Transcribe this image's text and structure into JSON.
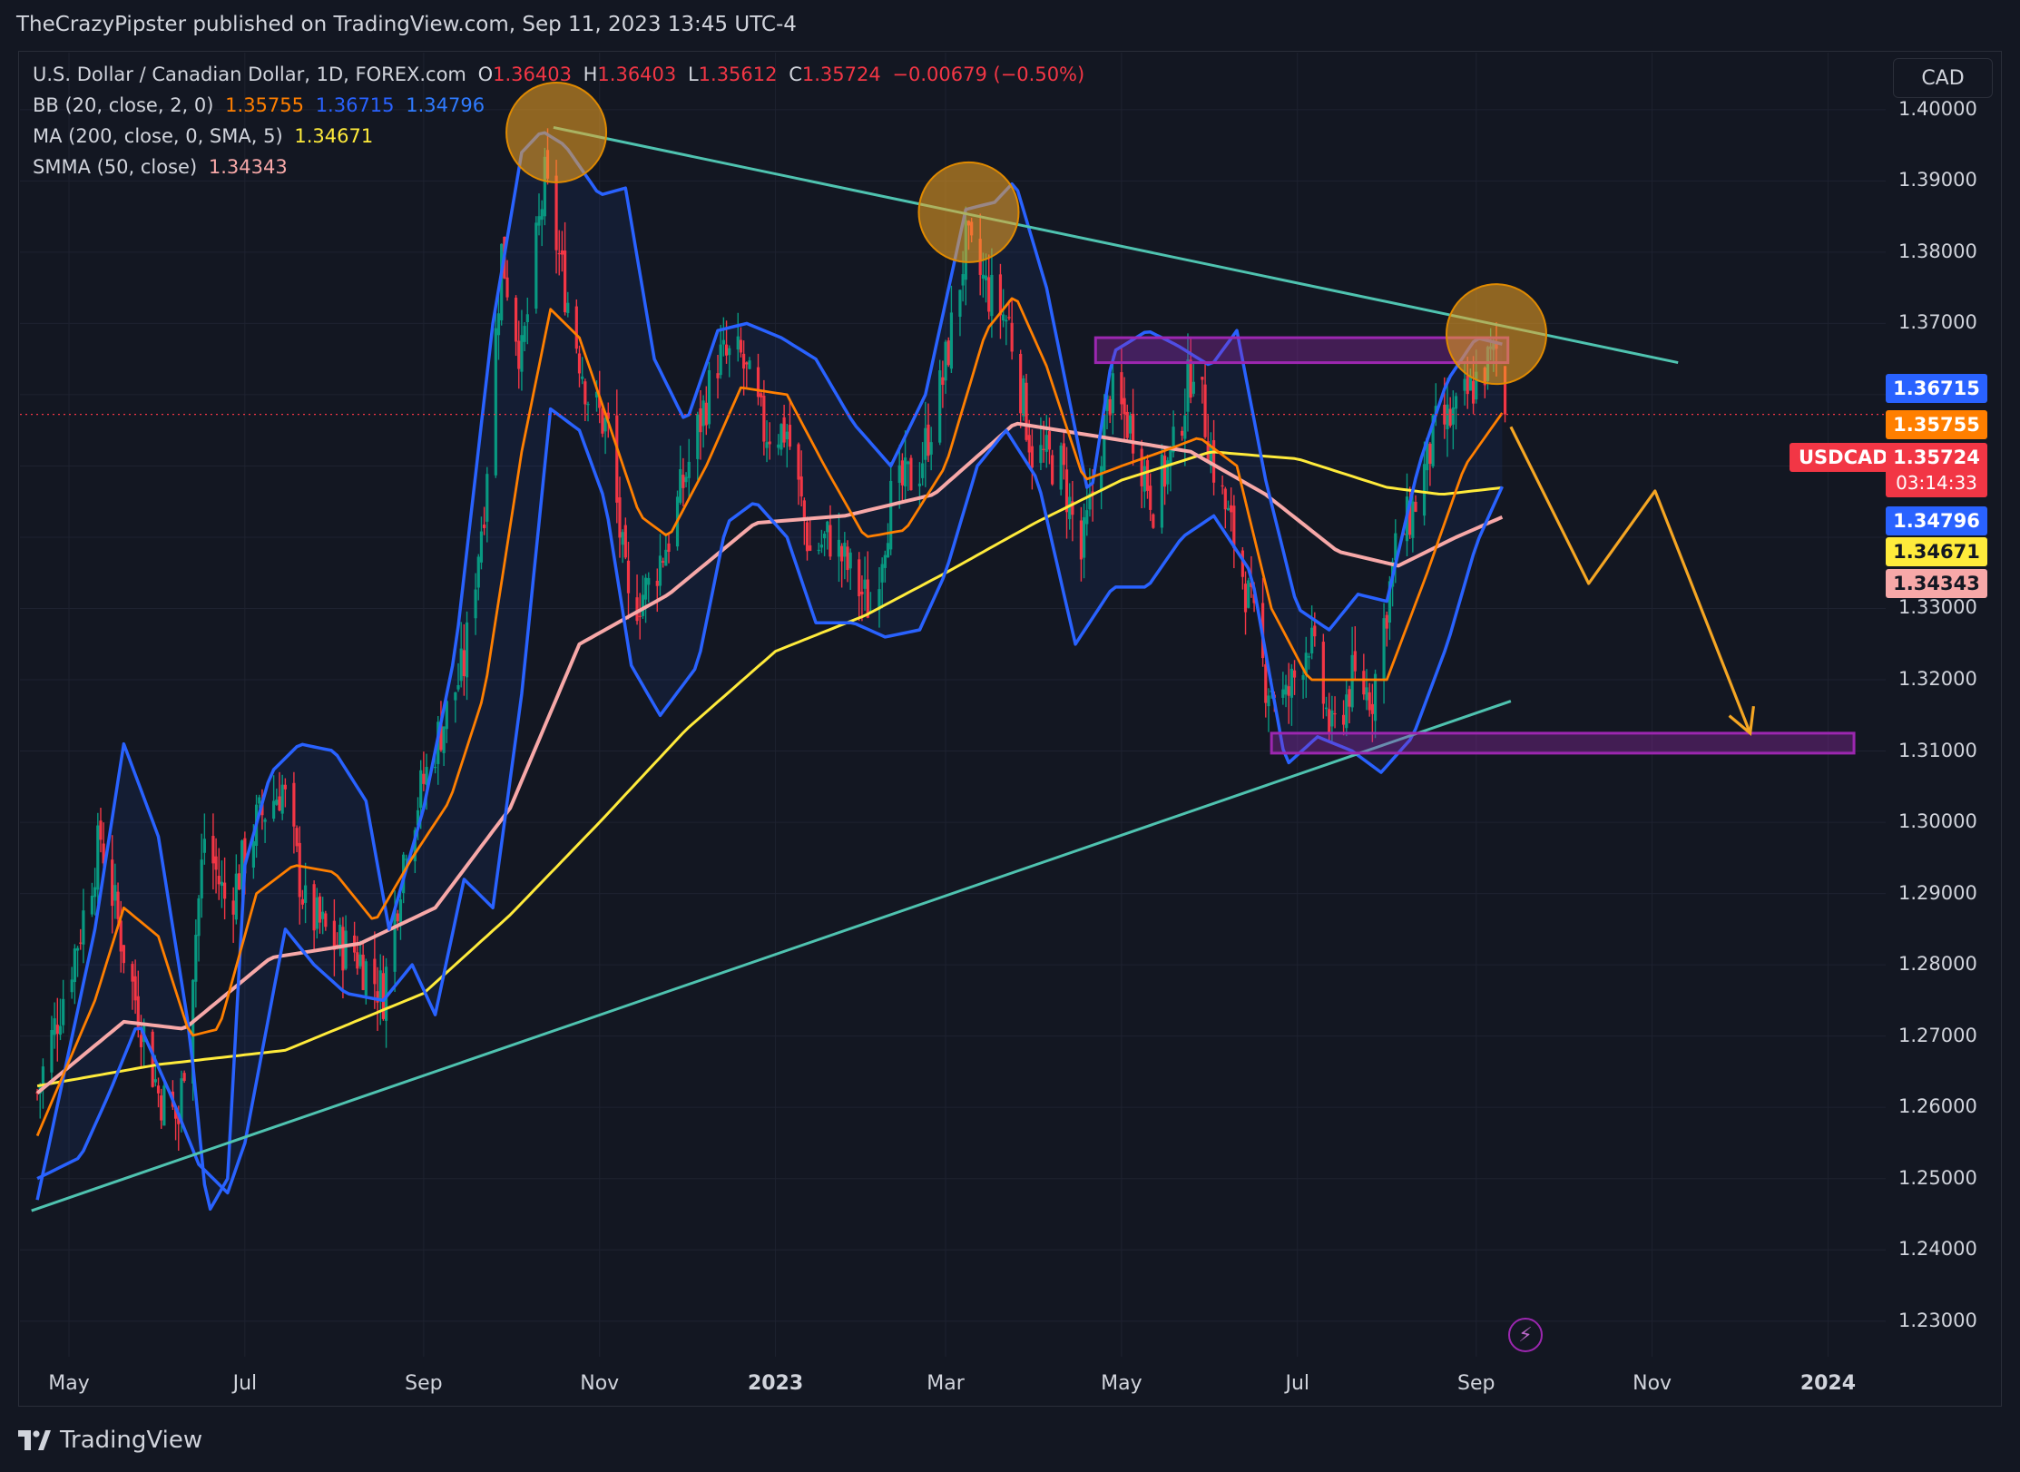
{
  "publisher": "TheCrazyPipster published on TradingView.com, Sep 11, 2023 13:45 UTC-4",
  "legend": {
    "symbol": "U.S. Dollar / Canadian Dollar, 1D, FOREX.com",
    "o_label": "O",
    "o_value": "1.36403",
    "h_label": "H",
    "h_value": "1.36403",
    "l_label": "L",
    "l_value": "1.35612",
    "c_label": "C",
    "c_value": "1.35724",
    "change": "−0.00679 (−0.50%)",
    "bb_label": "BB (20, close, 2, 0)",
    "bb_mid": "1.35755",
    "bb_upper": "1.36715",
    "bb_lower": "1.34796",
    "ma_label": "MA (200, close, 0, SMA, 5)",
    "ma_value": "1.34671",
    "smma_label": "SMMA (50, close)",
    "smma_value": "1.34343"
  },
  "currency_button": "CAD",
  "symbol_tag": "USDCAD",
  "price_tags": {
    "bb_upper": "1.36715",
    "bb_mid": "1.35755",
    "last": "1.35724",
    "countdown": "03:14:33",
    "bb_lower": "1.34796",
    "ma": "1.34671",
    "smma": "1.34343"
  },
  "brand": "TradingView",
  "colors": {
    "background": "#131722",
    "bull": "#089981",
    "bear": "#f23645",
    "bb_band": "#2962ff",
    "bb_basis": "#ff7f00",
    "ma": "#ffeb3b",
    "smma": "#f7a8a8",
    "trendline": "#4fc3b0",
    "zone": "#9c27b0",
    "projection": "#f5a623"
  },
  "chart_data": {
    "type": "candlestick",
    "ylim": [
      1.225,
      1.408
    ],
    "yticks": [
      "1.40000",
      "1.39000",
      "1.38000",
      "1.37000",
      "1.36000",
      "1.35000",
      "1.34000",
      "1.33000",
      "1.32000",
      "1.31000",
      "1.30000",
      "1.29000",
      "1.28000",
      "1.27000",
      "1.26000",
      "1.25000",
      "1.24000",
      "1.23000"
    ],
    "xticks": [
      {
        "label": "May",
        "date": "2022-05-01"
      },
      {
        "label": "Jul",
        "date": "2022-07-01"
      },
      {
        "label": "Sep",
        "date": "2022-09-01"
      },
      {
        "label": "Nov",
        "date": "2022-11-01"
      },
      {
        "label": "2023",
        "date": "2023-01-01",
        "bold": true
      },
      {
        "label": "Mar",
        "date": "2023-03-01"
      },
      {
        "label": "May",
        "date": "2023-05-01"
      },
      {
        "label": "Jul",
        "date": "2023-07-01"
      },
      {
        "label": "Sep",
        "date": "2023-09-01"
      },
      {
        "label": "Nov",
        "date": "2023-11-01"
      },
      {
        "label": "2024",
        "date": "2024-01-01",
        "bold": true
      }
    ],
    "price_path": [
      [
        "2022-04-20",
        1.262
      ],
      [
        "2022-05-05",
        1.285
      ],
      [
        "2022-05-12",
        1.298
      ],
      [
        "2022-05-20",
        1.282
      ],
      [
        "2022-06-01",
        1.262
      ],
      [
        "2022-06-08",
        1.258
      ],
      [
        "2022-06-17",
        1.298
      ],
      [
        "2022-06-25",
        1.288
      ],
      [
        "2022-07-05",
        1.3
      ],
      [
        "2022-07-14",
        1.305
      ],
      [
        "2022-07-22",
        1.288
      ],
      [
        "2022-08-01",
        1.283
      ],
      [
        "2022-08-08",
        1.282
      ],
      [
        "2022-08-18",
        1.276
      ],
      [
        "2022-08-26",
        1.298
      ],
      [
        "2022-09-06",
        1.312
      ],
      [
        "2022-09-15",
        1.322
      ],
      [
        "2022-09-22",
        1.345
      ],
      [
        "2022-09-28",
        1.38
      ],
      [
        "2022-10-05",
        1.365
      ],
      [
        "2022-10-13",
        1.39
      ],
      [
        "2022-10-20",
        1.375
      ],
      [
        "2022-10-28",
        1.36
      ],
      [
        "2022-11-04",
        1.355
      ],
      [
        "2022-11-11",
        1.33
      ],
      [
        "2022-11-18",
        1.333
      ],
      [
        "2022-11-25",
        1.34
      ],
      [
        "2022-12-05",
        1.355
      ],
      [
        "2022-12-12",
        1.365
      ],
      [
        "2022-12-20",
        1.365
      ],
      [
        "2022-12-28",
        1.355
      ],
      [
        "2023-01-05",
        1.355
      ],
      [
        "2023-01-13",
        1.338
      ],
      [
        "2023-01-20",
        1.34
      ],
      [
        "2023-01-27",
        1.335
      ],
      [
        "2023-02-03",
        1.33
      ],
      [
        "2023-02-10",
        1.345
      ],
      [
        "2023-02-20",
        1.35
      ],
      [
        "2023-02-28",
        1.362
      ],
      [
        "2023-03-08",
        1.381
      ],
      [
        "2023-03-15",
        1.375
      ],
      [
        "2023-03-23",
        1.37
      ],
      [
        "2023-03-31",
        1.352
      ],
      [
        "2023-04-10",
        1.35
      ],
      [
        "2023-04-17",
        1.337
      ],
      [
        "2023-04-27",
        1.36
      ],
      [
        "2023-05-05",
        1.355
      ],
      [
        "2023-05-12",
        1.345
      ],
      [
        "2023-05-19",
        1.352
      ],
      [
        "2023-05-26",
        1.365
      ],
      [
        "2023-06-02",
        1.35
      ],
      [
        "2023-06-12",
        1.335
      ],
      [
        "2023-06-20",
        1.32
      ],
      [
        "2023-06-27",
        1.317
      ],
      [
        "2023-07-05",
        1.326
      ],
      [
        "2023-07-13",
        1.312
      ],
      [
        "2023-07-20",
        1.32
      ],
      [
        "2023-07-27",
        1.318
      ],
      [
        "2023-08-04",
        1.338
      ],
      [
        "2023-08-11",
        1.345
      ],
      [
        "2023-08-18",
        1.355
      ],
      [
        "2023-08-25",
        1.357
      ],
      [
        "2023-09-01",
        1.362
      ],
      [
        "2023-09-08",
        1.366
      ],
      [
        "2023-09-11",
        1.357
      ]
    ],
    "bb_upper": [
      [
        "2022-04-20",
        1.247
      ],
      [
        "2022-05-10",
        1.285
      ],
      [
        "2022-05-20",
        1.311
      ],
      [
        "2022-06-01",
        1.298
      ],
      [
        "2022-06-12",
        1.27
      ],
      [
        "2022-06-18",
        1.245
      ],
      [
        "2022-06-25",
        1.25
      ],
      [
        "2022-07-01",
        1.294
      ],
      [
        "2022-07-10",
        1.307
      ],
      [
        "2022-07-20",
        1.311
      ],
      [
        "2022-08-01",
        1.31
      ],
      [
        "2022-08-12",
        1.303
      ],
      [
        "2022-08-20",
        1.285
      ],
      [
        "2022-09-01",
        1.302
      ],
      [
        "2022-09-12",
        1.324
      ],
      [
        "2022-09-25",
        1.37
      ],
      [
        "2022-10-05",
        1.394
      ],
      [
        "2022-10-12",
        1.397
      ],
      [
        "2022-10-20",
        1.395
      ],
      [
        "2022-11-01",
        1.388
      ],
      [
        "2022-11-10",
        1.389
      ],
      [
        "2022-11-20",
        1.365
      ],
      [
        "2022-12-01",
        1.356
      ],
      [
        "2022-12-12",
        1.369
      ],
      [
        "2022-12-22",
        1.37
      ],
      [
        "2023-01-03",
        1.368
      ],
      [
        "2023-01-15",
        1.365
      ],
      [
        "2023-01-28",
        1.356
      ],
      [
        "2023-02-10",
        1.35
      ],
      [
        "2023-02-22",
        1.36
      ],
      [
        "2023-03-08",
        1.386
      ],
      [
        "2023-03-18",
        1.387
      ],
      [
        "2023-03-25",
        1.39
      ],
      [
        "2023-04-05",
        1.375
      ],
      [
        "2023-04-20",
        1.345
      ],
      [
        "2023-04-28",
        1.366
      ],
      [
        "2023-05-10",
        1.369
      ],
      [
        "2023-05-20",
        1.367
      ],
      [
        "2023-06-01",
        1.364
      ],
      [
        "2023-06-10",
        1.369
      ],
      [
        "2023-06-20",
        1.348
      ],
      [
        "2023-07-01",
        1.33
      ],
      [
        "2023-07-12",
        1.327
      ],
      [
        "2023-07-22",
        1.332
      ],
      [
        "2023-08-01",
        1.331
      ],
      [
        "2023-08-12",
        1.35
      ],
      [
        "2023-08-22",
        1.362
      ],
      [
        "2023-09-01",
        1.368
      ],
      [
        "2023-09-11",
        1.367
      ]
    ],
    "bb_lower": [
      [
        "2022-04-20",
        1.25
      ],
      [
        "2022-05-05",
        1.253
      ],
      [
        "2022-05-15",
        1.262
      ],
      [
        "2022-05-25",
        1.272
      ],
      [
        "2022-06-05",
        1.262
      ],
      [
        "2022-06-15",
        1.252
      ],
      [
        "2022-06-25",
        1.248
      ],
      [
        "2022-07-01",
        1.255
      ],
      [
        "2022-07-15",
        1.285
      ],
      [
        "2022-07-25",
        1.28
      ],
      [
        "2022-08-05",
        1.276
      ],
      [
        "2022-08-18",
        1.275
      ],
      [
        "2022-08-28",
        1.28
      ],
      [
        "2022-09-05",
        1.273
      ],
      [
        "2022-09-15",
        1.292
      ],
      [
        "2022-09-25",
        1.288
      ],
      [
        "2022-10-05",
        1.318
      ],
      [
        "2022-10-15",
        1.358
      ],
      [
        "2022-10-25",
        1.355
      ],
      [
        "2022-11-03",
        1.345
      ],
      [
        "2022-11-12",
        1.322
      ],
      [
        "2022-11-22",
        1.315
      ],
      [
        "2022-12-05",
        1.322
      ],
      [
        "2022-12-15",
        1.342
      ],
      [
        "2022-12-25",
        1.345
      ],
      [
        "2023-01-05",
        1.34
      ],
      [
        "2023-01-15",
        1.328
      ],
      [
        "2023-01-28",
        1.328
      ],
      [
        "2023-02-08",
        1.326
      ],
      [
        "2023-02-20",
        1.327
      ],
      [
        "2023-03-01",
        1.335
      ],
      [
        "2023-03-12",
        1.35
      ],
      [
        "2023-03-22",
        1.355
      ],
      [
        "2023-04-02",
        1.348
      ],
      [
        "2023-04-15",
        1.325
      ],
      [
        "2023-04-28",
        1.333
      ],
      [
        "2023-05-10",
        1.333
      ],
      [
        "2023-05-22",
        1.34
      ],
      [
        "2023-06-02",
        1.343
      ],
      [
        "2023-06-15",
        1.335
      ],
      [
        "2023-06-27",
        1.308
      ],
      [
        "2023-07-08",
        1.312
      ],
      [
        "2023-07-20",
        1.31
      ],
      [
        "2023-07-30",
        1.307
      ],
      [
        "2023-08-10",
        1.312
      ],
      [
        "2023-08-22",
        1.325
      ],
      [
        "2023-09-01",
        1.339
      ],
      [
        "2023-09-11",
        1.348
      ]
    ],
    "bb_basis": [
      [
        "2022-04-20",
        1.256
      ],
      [
        "2022-05-10",
        1.275
      ],
      [
        "2022-05-20",
        1.288
      ],
      [
        "2022-06-01",
        1.284
      ],
      [
        "2022-06-12",
        1.27
      ],
      [
        "2022-06-22",
        1.271
      ],
      [
        "2022-07-05",
        1.29
      ],
      [
        "2022-07-18",
        1.294
      ],
      [
        "2022-08-01",
        1.293
      ],
      [
        "2022-08-15",
        1.286
      ],
      [
        "2022-08-28",
        1.295
      ],
      [
        "2022-09-10",
        1.303
      ],
      [
        "2022-09-22",
        1.318
      ],
      [
        "2022-10-05",
        1.352
      ],
      [
        "2022-10-15",
        1.372
      ],
      [
        "2022-10-25",
        1.368
      ],
      [
        "2022-11-05",
        1.355
      ],
      [
        "2022-11-15",
        1.343
      ],
      [
        "2022-11-25",
        1.34
      ],
      [
        "2022-12-08",
        1.35
      ],
      [
        "2022-12-20",
        1.361
      ],
      [
        "2023-01-05",
        1.36
      ],
      [
        "2023-01-18",
        1.35
      ],
      [
        "2023-02-01",
        1.34
      ],
      [
        "2023-02-15",
        1.341
      ],
      [
        "2023-03-01",
        1.35
      ],
      [
        "2023-03-15",
        1.369
      ],
      [
        "2023-03-25",
        1.374
      ],
      [
        "2023-04-05",
        1.364
      ],
      [
        "2023-04-18",
        1.348
      ],
      [
        "2023-05-01",
        1.35
      ],
      [
        "2023-05-15",
        1.352
      ],
      [
        "2023-05-28",
        1.354
      ],
      [
        "2023-06-10",
        1.35
      ],
      [
        "2023-06-22",
        1.33
      ],
      [
        "2023-07-05",
        1.32
      ],
      [
        "2023-07-20",
        1.32
      ],
      [
        "2023-08-01",
        1.32
      ],
      [
        "2023-08-15",
        1.335
      ],
      [
        "2023-08-28",
        1.35
      ],
      [
        "2023-09-11",
        1.358
      ]
    ],
    "ma": [
      [
        "2022-04-20",
        1.263
      ],
      [
        "2022-06-01",
        1.266
      ],
      [
        "2022-07-15",
        1.268
      ],
      [
        "2022-09-01",
        1.276
      ],
      [
        "2022-10-01",
        1.287
      ],
      [
        "2022-11-01",
        1.3
      ],
      [
        "2022-12-01",
        1.313
      ],
      [
        "2023-01-01",
        1.324
      ],
      [
        "2023-02-01",
        1.329
      ],
      [
        "2023-03-01",
        1.335
      ],
      [
        "2023-04-01",
        1.342
      ],
      [
        "2023-05-01",
        1.348
      ],
      [
        "2023-06-01",
        1.352
      ],
      [
        "2023-07-01",
        1.351
      ],
      [
        "2023-08-01",
        1.347
      ],
      [
        "2023-08-20",
        1.346
      ],
      [
        "2023-09-11",
        1.347
      ]
    ],
    "smma": [
      [
        "2022-04-20",
        1.262
      ],
      [
        "2022-05-20",
        1.272
      ],
      [
        "2022-06-10",
        1.271
      ],
      [
        "2022-07-10",
        1.281
      ],
      [
        "2022-08-10",
        1.283
      ],
      [
        "2022-09-05",
        1.288
      ],
      [
        "2022-10-01",
        1.302
      ],
      [
        "2022-10-25",
        1.325
      ],
      [
        "2022-11-25",
        1.332
      ],
      [
        "2022-12-25",
        1.342
      ],
      [
        "2023-01-25",
        1.343
      ],
      [
        "2023-02-25",
        1.346
      ],
      [
        "2023-03-25",
        1.356
      ],
      [
        "2023-04-25",
        1.354
      ],
      [
        "2023-05-25",
        1.352
      ],
      [
        "2023-06-20",
        1.346
      ],
      [
        "2023-07-15",
        1.338
      ],
      [
        "2023-08-05",
        1.336
      ],
      [
        "2023-08-25",
        1.34
      ],
      [
        "2023-09-11",
        1.343
      ]
    ],
    "annotations": {
      "upper_trendline": [
        [
          "2022-10-16",
          1.3975
        ],
        [
          "2023-11-10",
          1.3645
        ]
      ],
      "lower_trendline": [
        [
          "2022-04-18",
          1.2455
        ],
        [
          "2023-09-13",
          1.317
        ]
      ],
      "resistance_zone": {
        "from": "2023-04-22",
        "to": "2023-09-12",
        "low": 1.3645,
        "high": 1.368
      },
      "support_zone": {
        "from": "2023-06-22",
        "to": "2024-01-10",
        "low": 1.3097,
        "high": 1.3125
      },
      "highlight_circles": [
        {
          "date": "2022-10-17",
          "price": 1.3968
        },
        {
          "date": "2023-03-09",
          "price": 1.3856
        },
        {
          "date": "2023-09-08",
          "price": 1.3685
        }
      ],
      "projection_path": [
        [
          "2023-09-13",
          1.3555
        ],
        [
          "2023-10-10",
          1.3335
        ],
        [
          "2023-11-02",
          1.3465
        ],
        [
          "2023-12-05",
          1.3125
        ]
      ],
      "last_price_line": 1.35724
    }
  }
}
